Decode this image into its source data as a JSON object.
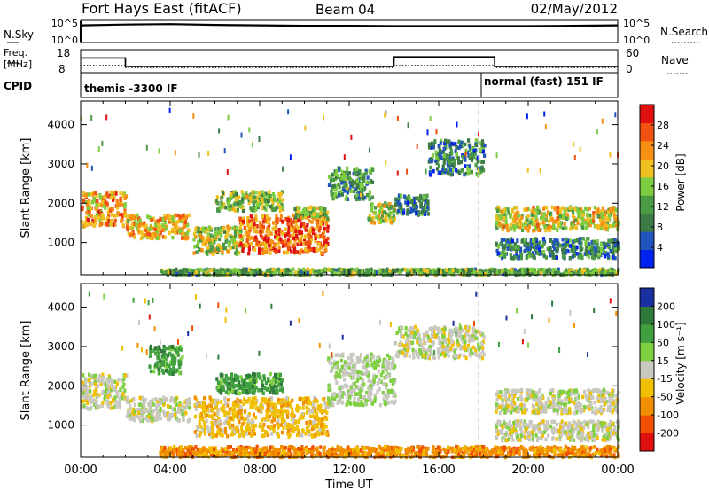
{
  "header": {
    "station": "Fort Hays East (fitACF)",
    "beam": "Beam 04",
    "date": "02/May/2012"
  },
  "noise_panel": {
    "left_label": "N.Sky",
    "right_label": "N.Search",
    "ticks": [
      "10^5",
      "10^0"
    ],
    "right_ticks": [
      "10^5",
      "10^0"
    ]
  },
  "freq_panel": {
    "left_label_line1": "Freq.",
    "left_label_line2": "[MHz]",
    "right_label": "Nave",
    "left_ticks": [
      "18",
      "8"
    ],
    "right_ticks": [
      "60",
      "0"
    ]
  },
  "cpid_panel": {
    "label": "CPID",
    "modes": [
      {
        "text": "themis -3300 IF",
        "start": "00:00"
      },
      {
        "text": "normal (fast) 151 IF",
        "start": "18:10"
      }
    ]
  },
  "xaxis": {
    "title": "Time UT",
    "ticks": [
      "00:00",
      "04:00",
      "08:00",
      "12:00",
      "16:00",
      "20:00",
      "00:00"
    ]
  },
  "power_panel": {
    "ylabel": "Slant Range [km]",
    "yticks": [
      "4000",
      "3000",
      "2000",
      "1000"
    ],
    "colorbar_label": "Power [dB]",
    "colorbar_ticks": [
      "28",
      "24",
      "20",
      "16",
      "12",
      "8",
      "4"
    ],
    "colors": [
      "#0022ee",
      "#2255bb",
      "#3c7a46",
      "#4a9a46",
      "#7ecc40",
      "#f0c020",
      "#f59014",
      "#f05010",
      "#e01010"
    ]
  },
  "velocity_panel": {
    "ylabel": "Slant Range [km]",
    "yticks": [
      "4000",
      "3000",
      "2000",
      "1000"
    ],
    "colorbar_label": "Velocity [m s⁻¹]",
    "colorbar_ticks": [
      "200",
      "100",
      "50",
      "15",
      "-15",
      "-50",
      "-100",
      "-200"
    ],
    "colors": [
      "#1a2fa0",
      "#2f7a3a",
      "#40a040",
      "#7ed040",
      "#c8c8c0",
      "#f0c000",
      "#f09000",
      "#f05000",
      "#e01010"
    ]
  },
  "chart_data": [
    {
      "type": "line",
      "title": "Fort Hays East (fitACF)",
      "ylabel": "N.Sky / N.Search",
      "x_range": [
        "00:00",
        "24:00"
      ],
      "ylim": [
        "10^0",
        "10^5"
      ],
      "log_scale": true,
      "series": [
        {
          "name": "N.Sky",
          "x": [
            0,
            2,
            4,
            6,
            8,
            10,
            12,
            14,
            16,
            18,
            20,
            22,
            24
          ],
          "values": [
            4.0,
            4.2,
            4.3,
            4.1,
            4.0,
            3.9,
            3.9,
            3.8,
            3.8,
            3.8,
            3.8,
            3.9,
            4.0
          ]
        }
      ]
    },
    {
      "type": "line",
      "ylabel": "Freq. [MHz]",
      "ylim": [
        8,
        18
      ],
      "series": [
        {
          "name": "Freq.",
          "x": [
            0,
            2.0,
            2.0,
            14.0,
            14.0,
            18.5,
            18.5,
            24
          ],
          "values": [
            14.5,
            14.5,
            10.5,
            10.5,
            15,
            15,
            10.5,
            10.5
          ]
        },
        {
          "name": "Nave",
          "x": [
            0,
            2.0,
            2.0,
            14.0,
            14.0,
            18.5,
            18.5,
            24
          ],
          "values": [
            11,
            11,
            10,
            10,
            11,
            11,
            10,
            10
          ]
        }
      ]
    },
    {
      "type": "heatmap",
      "xlabel": "Time UT",
      "ylabel": "Slant Range [km]",
      "ylim": [
        180,
        4600
      ],
      "x_range_hours": [
        0,
        24
      ],
      "variable": "Power [dB]",
      "colorbar_range": [
        0,
        30
      ],
      "regions": [
        {
          "t0": 0.0,
          "t1": 2.0,
          "r0": 1400,
          "r1": 2300,
          "peak": 22
        },
        {
          "t0": 2.0,
          "t1": 4.8,
          "r0": 1100,
          "r1": 1700,
          "peak": 20
        },
        {
          "t0": 5.0,
          "t1": 7.2,
          "r0": 700,
          "r1": 1400,
          "peak": 16
        },
        {
          "t0": 6.0,
          "t1": 9.0,
          "r0": 1800,
          "r1": 2300,
          "peak": 14
        },
        {
          "t0": 7.0,
          "t1": 11.0,
          "r0": 700,
          "r1": 1700,
          "peak": 24
        },
        {
          "t0": 9.5,
          "t1": 11.0,
          "r0": 1600,
          "r1": 1900,
          "peak": 14
        },
        {
          "t0": 11.0,
          "t1": 13.0,
          "r0": 2100,
          "r1": 2900,
          "peak": 10
        },
        {
          "t0": 12.8,
          "t1": 14.0,
          "r0": 1500,
          "r1": 2000,
          "peak": 16
        },
        {
          "t0": 14.0,
          "t1": 15.5,
          "r0": 1700,
          "r1": 2200,
          "peak": 8
        },
        {
          "t0": 15.5,
          "t1": 18.0,
          "r0": 2700,
          "r1": 3600,
          "peak": 8
        },
        {
          "t0": 18.5,
          "t1": 24.0,
          "r0": 1300,
          "r1": 1900,
          "peak": 18
        },
        {
          "t0": 18.5,
          "t1": 24.0,
          "r0": 600,
          "r1": 1100,
          "peak": 8
        },
        {
          "t0": 3.5,
          "t1": 24.0,
          "r0": 180,
          "r1": 320,
          "peak": 12
        }
      ]
    },
    {
      "type": "heatmap",
      "xlabel": "Time UT",
      "ylabel": "Slant Range [km]",
      "ylim": [
        180,
        4600
      ],
      "x_range_hours": [
        0,
        24
      ],
      "variable": "Velocity [m s⁻¹]",
      "colorbar_range": [
        -200,
        200
      ],
      "regions": [
        {
          "t0": 0.0,
          "t1": 2.0,
          "r0": 1400,
          "r1": 2300,
          "peak": 0
        },
        {
          "t0": 2.0,
          "t1": 4.8,
          "r0": 1100,
          "r1": 1700,
          "peak": 0
        },
        {
          "t0": 3.0,
          "t1": 4.5,
          "r0": 2300,
          "r1": 3000,
          "peak": 60
        },
        {
          "t0": 6.0,
          "t1": 9.0,
          "r0": 1800,
          "r1": 2300,
          "peak": 60
        },
        {
          "t0": 5.0,
          "t1": 11.0,
          "r0": 700,
          "r1": 1700,
          "peak": -30
        },
        {
          "t0": 11.0,
          "t1": 14.0,
          "r0": 1500,
          "r1": 2800,
          "peak": 10
        },
        {
          "t0": 14.0,
          "t1": 18.0,
          "r0": 2700,
          "r1": 3500,
          "peak": 0
        },
        {
          "t0": 18.5,
          "t1": 24.0,
          "r0": 1300,
          "r1": 1900,
          "peak": 0
        },
        {
          "t0": 18.5,
          "t1": 24.0,
          "r0": 600,
          "r1": 1100,
          "peak": 0
        },
        {
          "t0": 3.5,
          "t1": 24.0,
          "r0": 180,
          "r1": 450,
          "peak": -60
        }
      ]
    }
  ]
}
